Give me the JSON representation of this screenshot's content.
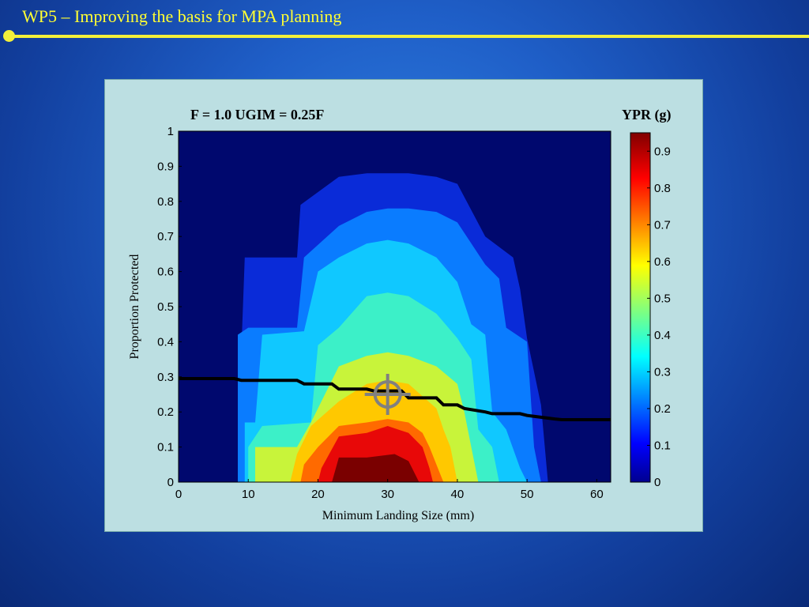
{
  "slide": {
    "title": "WP5 – Improving the basis for MPA planning"
  },
  "chart_data": {
    "type": "heatmap",
    "title": "F = 1.0   UGIM = 0.25F",
    "xlabel": "Minimum Landing Size (mm)",
    "ylabel": "Proportion Protected",
    "xlim": [
      0,
      62
    ],
    "ylim": [
      0,
      1
    ],
    "xticks": [
      0,
      10,
      20,
      30,
      40,
      50,
      60
    ],
    "yticks": [
      0,
      0.1,
      0.2,
      0.3,
      0.4,
      0.5,
      0.6,
      0.7,
      0.8,
      0.9,
      1
    ],
    "colorbar": {
      "label": "YPR (g)",
      "range": [
        0,
        0.95
      ],
      "ticks": [
        0,
        0.1,
        0.2,
        0.3,
        0.4,
        0.5,
        0.6,
        0.7,
        0.8,
        0.9
      ]
    },
    "contour_levels": [
      {
        "level": 0.1,
        "color": "#0a2bd8",
        "boundary": [
          [
            8.5,
            0
          ],
          [
            8.5,
            0.1
          ],
          [
            9.5,
            0.64
          ],
          [
            17,
            0.64
          ],
          [
            17.5,
            0.79
          ],
          [
            23,
            0.87
          ],
          [
            27,
            0.88
          ],
          [
            30,
            0.88
          ],
          [
            33,
            0.88
          ],
          [
            37,
            0.87
          ],
          [
            40,
            0.85
          ],
          [
            44,
            0.7
          ],
          [
            48,
            0.64
          ],
          [
            49,
            0.55
          ],
          [
            50,
            0.41
          ],
          [
            52,
            0.22
          ],
          [
            53,
            0
          ],
          [
            8.5,
            0
          ]
        ]
      },
      {
        "level": 0.2,
        "color": "#0a7cff",
        "boundary": [
          [
            8.5,
            0
          ],
          [
            8.5,
            0.42
          ],
          [
            10,
            0.44
          ],
          [
            17,
            0.44
          ],
          [
            18,
            0.64
          ],
          [
            23,
            0.73
          ],
          [
            27,
            0.77
          ],
          [
            30,
            0.78
          ],
          [
            33,
            0.78
          ],
          [
            37,
            0.77
          ],
          [
            40,
            0.74
          ],
          [
            44,
            0.62
          ],
          [
            46,
            0.58
          ],
          [
            47,
            0.44
          ],
          [
            50,
            0.4
          ],
          [
            51,
            0.1
          ],
          [
            52,
            0
          ],
          [
            8.5,
            0
          ]
        ]
      },
      {
        "level": 0.3,
        "color": "#10c8ff",
        "boundary": [
          [
            9.5,
            0
          ],
          [
            9.5,
            0.17
          ],
          [
            11,
            0.17
          ],
          [
            12,
            0.42
          ],
          [
            18,
            0.43
          ],
          [
            20,
            0.6
          ],
          [
            23,
            0.64
          ],
          [
            27,
            0.68
          ],
          [
            30,
            0.69
          ],
          [
            33,
            0.68
          ],
          [
            37,
            0.64
          ],
          [
            40,
            0.57
          ],
          [
            42,
            0.45
          ],
          [
            44,
            0.42
          ],
          [
            45,
            0.2
          ],
          [
            47,
            0.15
          ],
          [
            49,
            0.04
          ],
          [
            50,
            0
          ],
          [
            9.5,
            0
          ]
        ]
      },
      {
        "level": 0.4,
        "color": "#3cf0c8",
        "boundary": [
          [
            10,
            0
          ],
          [
            10,
            0.1
          ],
          [
            12,
            0.16
          ],
          [
            19,
            0.17
          ],
          [
            20,
            0.39
          ],
          [
            23,
            0.44
          ],
          [
            27,
            0.53
          ],
          [
            30,
            0.54
          ],
          [
            33,
            0.53
          ],
          [
            37,
            0.48
          ],
          [
            40,
            0.41
          ],
          [
            42,
            0.35
          ],
          [
            43,
            0.15
          ],
          [
            45,
            0.1
          ],
          [
            46,
            0
          ],
          [
            10,
            0
          ]
        ]
      },
      {
        "level": 0.5,
        "color": "#c8f43a",
        "boundary": [
          [
            11,
            0
          ],
          [
            11,
            0.1
          ],
          [
            12,
            0.1
          ],
          [
            17,
            0.1
          ],
          [
            19,
            0.17
          ],
          [
            23,
            0.33
          ],
          [
            27,
            0.36
          ],
          [
            30,
            0.37
          ],
          [
            33,
            0.36
          ],
          [
            37,
            0.33
          ],
          [
            40,
            0.28
          ],
          [
            41,
            0.2
          ],
          [
            42,
            0.1
          ],
          [
            43,
            0
          ],
          [
            11,
            0
          ]
        ]
      },
      {
        "level": 0.6,
        "color": "#ffc800",
        "boundary": [
          [
            16,
            0
          ],
          [
            17,
            0.08
          ],
          [
            19,
            0.16
          ],
          [
            23,
            0.23
          ],
          [
            27,
            0.28
          ],
          [
            30,
            0.29
          ],
          [
            33,
            0.28
          ],
          [
            37,
            0.21
          ],
          [
            38,
            0.15
          ],
          [
            39,
            0.1
          ],
          [
            40,
            0
          ],
          [
            16,
            0
          ]
        ]
      },
      {
        "level": 0.7,
        "color": "#ff6a00",
        "boundary": [
          [
            17.5,
            0
          ],
          [
            18,
            0.05
          ],
          [
            20,
            0.1
          ],
          [
            23,
            0.16
          ],
          [
            27,
            0.17
          ],
          [
            30,
            0.18
          ],
          [
            33,
            0.17
          ],
          [
            35,
            0.14
          ],
          [
            36,
            0.1
          ],
          [
            37,
            0.05
          ],
          [
            38,
            0
          ],
          [
            17.5,
            0
          ]
        ]
      },
      {
        "level": 0.8,
        "color": "#e80808",
        "boundary": [
          [
            20,
            0
          ],
          [
            20.5,
            0.04
          ],
          [
            23,
            0.13
          ],
          [
            27,
            0.14
          ],
          [
            30,
            0.16
          ],
          [
            33,
            0.14
          ],
          [
            35,
            0.1
          ],
          [
            36,
            0.04
          ],
          [
            36.5,
            0
          ],
          [
            20,
            0
          ]
        ]
      },
      {
        "level": 0.9,
        "color": "#7a0000",
        "boundary": [
          [
            22,
            0
          ],
          [
            23,
            0.07
          ],
          [
            27,
            0.07
          ],
          [
            31,
            0.08
          ],
          [
            33,
            0.06
          ],
          [
            34,
            0.02
          ],
          [
            34.5,
            0
          ],
          [
            22,
            0
          ]
        ]
      }
    ],
    "series": [
      {
        "type": "line",
        "x": [
          0,
          8,
          9,
          17,
          18,
          22,
          23,
          27,
          28,
          32,
          33,
          37,
          38,
          40,
          41,
          44,
          45,
          49,
          50,
          54,
          55,
          62
        ],
        "y": [
          0.295,
          0.295,
          0.29,
          0.29,
          0.28,
          0.28,
          0.265,
          0.265,
          0.26,
          0.26,
          0.24,
          0.24,
          0.22,
          0.22,
          0.21,
          0.2,
          0.195,
          0.195,
          0.19,
          0.18,
          0.178,
          0.178
        ]
      }
    ],
    "marker": {
      "x": 30,
      "y": 0.25,
      "shape": "crosshair"
    },
    "colors": {
      "background": "#00086e",
      "panel": "#bcdfe2",
      "line": "#000000",
      "marker": "#808080"
    }
  }
}
